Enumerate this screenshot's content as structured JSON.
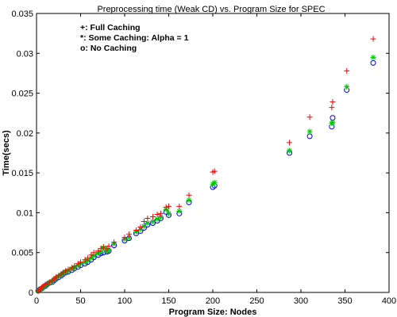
{
  "chart_data": {
    "type": "scatter",
    "title": "Preprocessing time (Weak CD) vs. Program Size for SPEC",
    "xlabel": "Program Size: Nodes",
    "ylabel": "Time(secs)",
    "xlim": [
      0,
      400
    ],
    "ylim": [
      0,
      0.035
    ],
    "x_ticks": [
      "0",
      "50",
      "100",
      "150",
      "200",
      "250",
      "300",
      "350",
      "400"
    ],
    "y_ticks": [
      "0",
      "0.005",
      "0.01",
      "0.015",
      "0.02",
      "0.025",
      "0.03",
      "0.035"
    ],
    "x_tick_values": [
      0,
      50,
      100,
      150,
      200,
      250,
      300,
      350,
      400
    ],
    "y_tick_values": [
      0,
      0.005,
      0.01,
      0.015,
      0.02,
      0.025,
      0.03,
      0.035
    ],
    "grid": false,
    "legend_position": "top-left",
    "legend": [
      "+: Full Caching",
      "*: Some Caching: Alpha = 1",
      "o: No Caching"
    ],
    "series": [
      {
        "marker": "plus",
        "color": "#ff0000",
        "points": [
          [
            2,
            0.0002
          ],
          [
            4,
            0.0004
          ],
          [
            6,
            0.0006
          ],
          [
            8,
            0.0008
          ],
          [
            10,
            0.001
          ],
          [
            12,
            0.0011
          ],
          [
            15,
            0.0013
          ],
          [
            18,
            0.0015
          ],
          [
            20,
            0.0017
          ],
          [
            22,
            0.0019
          ],
          [
            25,
            0.0021
          ],
          [
            28,
            0.0023
          ],
          [
            30,
            0.0025
          ],
          [
            33,
            0.0027
          ],
          [
            36,
            0.0029
          ],
          [
            40,
            0.0031
          ],
          [
            43,
            0.0033
          ],
          [
            47,
            0.0036
          ],
          [
            50,
            0.0038
          ],
          [
            55,
            0.0041
          ],
          [
            58,
            0.0043
          ],
          [
            62,
            0.0047
          ],
          [
            65,
            0.005
          ],
          [
            70,
            0.0052
          ],
          [
            73,
            0.0055
          ],
          [
            76,
            0.0057
          ],
          [
            80,
            0.0055
          ],
          [
            82,
            0.0058
          ],
          [
            88,
            0.0063
          ],
          [
            100,
            0.0069
          ],
          [
            105,
            0.0073
          ],
          [
            113,
            0.0078
          ],
          [
            118,
            0.0082
          ],
          [
            122,
            0.0089
          ],
          [
            126,
            0.0093
          ],
          [
            132,
            0.0095
          ],
          [
            137,
            0.0098
          ],
          [
            141,
            0.0099
          ],
          [
            147,
            0.0107
          ],
          [
            150,
            0.0108
          ],
          [
            162,
            0.0108
          ],
          [
            173,
            0.0122
          ],
          [
            200,
            0.0151
          ],
          [
            202,
            0.0152
          ],
          [
            287,
            0.0188
          ],
          [
            310,
            0.022
          ],
          [
            335,
            0.0232
          ],
          [
            336,
            0.0239
          ],
          [
            352,
            0.0278
          ],
          [
            382,
            0.0318
          ]
        ]
      },
      {
        "marker": "star",
        "color": "#00cc00",
        "points": [
          [
            2,
            0.0002
          ],
          [
            4,
            0.0004
          ],
          [
            6,
            0.0005
          ],
          [
            8,
            0.0007
          ],
          [
            10,
            0.0009
          ],
          [
            12,
            0.001
          ],
          [
            15,
            0.0012
          ],
          [
            18,
            0.0014
          ],
          [
            20,
            0.0016
          ],
          [
            22,
            0.0018
          ],
          [
            25,
            0.002
          ],
          [
            28,
            0.0022
          ],
          [
            30,
            0.0024
          ],
          [
            33,
            0.0026
          ],
          [
            36,
            0.0027
          ],
          [
            40,
            0.003
          ],
          [
            43,
            0.0031
          ],
          [
            47,
            0.0034
          ],
          [
            50,
            0.0036
          ],
          [
            55,
            0.0038
          ],
          [
            58,
            0.004
          ],
          [
            62,
            0.0043
          ],
          [
            65,
            0.0046
          ],
          [
            70,
            0.0049
          ],
          [
            73,
            0.0051
          ],
          [
            76,
            0.0056
          ],
          [
            80,
            0.0052
          ],
          [
            82,
            0.0054
          ],
          [
            88,
            0.0061
          ],
          [
            100,
            0.0067
          ],
          [
            105,
            0.0069
          ],
          [
            113,
            0.0076
          ],
          [
            118,
            0.0079
          ],
          [
            122,
            0.0083
          ],
          [
            126,
            0.0087
          ],
          [
            132,
            0.0089
          ],
          [
            137,
            0.0092
          ],
          [
            141,
            0.0095
          ],
          [
            147,
            0.0104
          ],
          [
            150,
            0.0099
          ],
          [
            162,
            0.0102
          ],
          [
            173,
            0.0116
          ],
          [
            200,
            0.0136
          ],
          [
            202,
            0.0138
          ],
          [
            287,
            0.0178
          ],
          [
            310,
            0.0202
          ],
          [
            335,
            0.0212
          ],
          [
            336,
            0.0213
          ],
          [
            352,
            0.0258
          ],
          [
            382,
            0.0295
          ]
        ]
      },
      {
        "marker": "circle",
        "color": "#0000ff",
        "points": [
          [
            2,
            0.0002
          ],
          [
            4,
            0.0004
          ],
          [
            6,
            0.0005
          ],
          [
            8,
            0.0007
          ],
          [
            10,
            0.0008
          ],
          [
            12,
            0.001
          ],
          [
            15,
            0.0012
          ],
          [
            18,
            0.0013
          ],
          [
            20,
            0.0015
          ],
          [
            22,
            0.0017
          ],
          [
            25,
            0.0019
          ],
          [
            28,
            0.0021
          ],
          [
            30,
            0.0023
          ],
          [
            33,
            0.0025
          ],
          [
            36,
            0.0026
          ],
          [
            40,
            0.0028
          ],
          [
            43,
            0.003
          ],
          [
            47,
            0.0032
          ],
          [
            50,
            0.0034
          ],
          [
            55,
            0.0036
          ],
          [
            58,
            0.0038
          ],
          [
            62,
            0.0041
          ],
          [
            65,
            0.0044
          ],
          [
            70,
            0.0047
          ],
          [
            73,
            0.0049
          ],
          [
            76,
            0.005
          ],
          [
            80,
            0.0051
          ],
          [
            82,
            0.0052
          ],
          [
            88,
            0.0059
          ],
          [
            100,
            0.0065
          ],
          [
            105,
            0.0068
          ],
          [
            113,
            0.0074
          ],
          [
            118,
            0.0077
          ],
          [
            122,
            0.0081
          ],
          [
            126,
            0.0085
          ],
          [
            132,
            0.0087
          ],
          [
            137,
            0.009
          ],
          [
            141,
            0.0093
          ],
          [
            147,
            0.0101
          ],
          [
            150,
            0.0097
          ],
          [
            162,
            0.0099
          ],
          [
            173,
            0.0113
          ],
          [
            200,
            0.0132
          ],
          [
            202,
            0.0134
          ],
          [
            287,
            0.0175
          ],
          [
            310,
            0.0196
          ],
          [
            335,
            0.0208
          ],
          [
            336,
            0.0219
          ],
          [
            352,
            0.0254
          ],
          [
            382,
            0.0288
          ]
        ]
      }
    ]
  }
}
